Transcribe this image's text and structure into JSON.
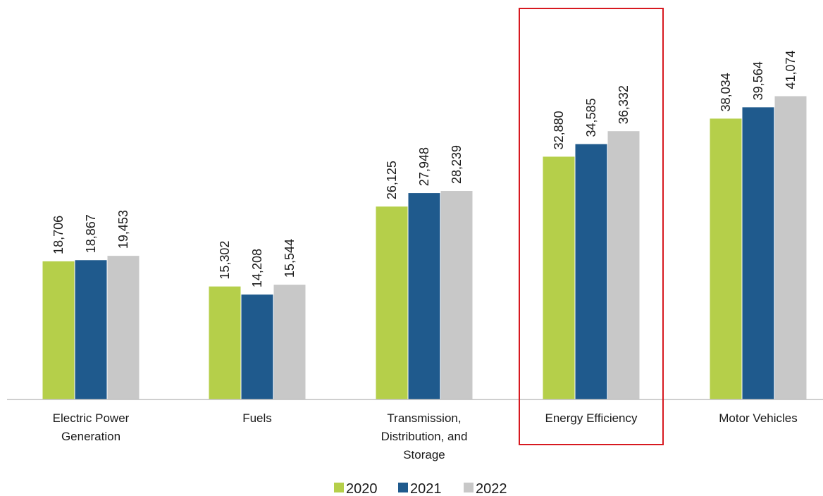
{
  "chart_data": {
    "type": "bar",
    "categories": [
      "Electric Power\nGeneration",
      "Fuels",
      "Transmission,\nDistribution, and\nStorage",
      "Energy Efficiency",
      "Motor Vehicles"
    ],
    "series": [
      {
        "name": "2020",
        "color": "#b5cf4a",
        "values": [
          18706,
          15302,
          26125,
          32880,
          38034
        ]
      },
      {
        "name": "2021",
        "color": "#1f5a8d",
        "values": [
          18867,
          14208,
          27948,
          34585,
          39564
        ]
      },
      {
        "name": "2022",
        "color": "#c8c8c8",
        "values": [
          19453,
          15544,
          28239,
          36332,
          41074
        ]
      }
    ],
    "data_labels": [
      [
        "18,706",
        "15,302",
        "26,125",
        "32,880",
        "38,034"
      ],
      [
        "18,867",
        "14,208",
        "27,948",
        "34,585",
        "39,564"
      ],
      [
        "19,453",
        "15,544",
        "28,239",
        "36,332",
        "41,074"
      ]
    ],
    "highlighted_category": "Energy Efficiency",
    "highlight_color": "#d71920",
    "legend_position": "bottom",
    "grid": false,
    "ylim": [
      0,
      43000
    ]
  }
}
